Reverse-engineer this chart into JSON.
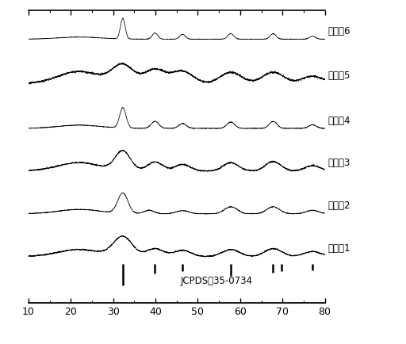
{
  "title": "",
  "xlabel": "",
  "ylabel": "",
  "xlim": [
    10,
    80
  ],
  "xticklabels": [
    "10",
    "20",
    "30",
    "40",
    "50",
    "60",
    "70",
    "80"
  ],
  "xticks": [
    10,
    20,
    30,
    40,
    50,
    60,
    70,
    80
  ],
  "background_color": "#ffffff",
  "labels": [
    "实施例6",
    "实施例5",
    "实施例4",
    "实施例3",
    "实施例2",
    "实施例1"
  ],
  "jcpds_label": "JCPDS：35-0734",
  "jcpds_peaks": [
    32.3,
    39.9,
    46.4,
    57.8,
    67.8,
    69.8,
    77.1
  ],
  "jcpds_peak_heights_rel": [
    1.0,
    0.45,
    0.35,
    0.55,
    0.4,
    0.35,
    0.3
  ],
  "offsets": [
    5.8,
    4.65,
    3.5,
    2.4,
    1.3,
    0.2
  ],
  "noise_scale": 0.018,
  "line_color": "#000000",
  "label_fontsize": 8.5,
  "tick_fontsize": 9,
  "patterns": [
    {
      "name": "实施例1",
      "broad_hump": {
        "mu": 22,
        "sigma": 5,
        "amp": 0.25
      },
      "peaks": [
        {
          "mu": 32.3,
          "sigma": 2.2,
          "amp": 0.7
        },
        {
          "mu": 39.9,
          "sigma": 2.0,
          "amp": 0.28
        },
        {
          "mu": 46.4,
          "sigma": 2.0,
          "amp": 0.22
        },
        {
          "mu": 57.8,
          "sigma": 2.0,
          "amp": 0.25
        },
        {
          "mu": 67.8,
          "sigma": 2.0,
          "amp": 0.28
        },
        {
          "mu": 77.1,
          "sigma": 2.0,
          "amp": 0.18
        }
      ]
    },
    {
      "name": "实施例2",
      "broad_hump": {
        "mu": 22,
        "sigma": 5,
        "amp": 0.28
      },
      "peaks": [
        {
          "mu": 32.3,
          "sigma": 1.2,
          "amp": 1.3
        },
        {
          "mu": 38.5,
          "sigma": 1.2,
          "amp": 0.22
        },
        {
          "mu": 46.4,
          "sigma": 1.5,
          "amp": 0.2
        },
        {
          "mu": 57.8,
          "sigma": 1.5,
          "amp": 0.45
        },
        {
          "mu": 67.8,
          "sigma": 1.5,
          "amp": 0.45
        },
        {
          "mu": 77.1,
          "sigma": 1.5,
          "amp": 0.22
        }
      ]
    },
    {
      "name": "实施例3",
      "broad_hump": {
        "mu": 22,
        "sigma": 5,
        "amp": 0.28
      },
      "peaks": [
        {
          "mu": 32.3,
          "sigma": 1.8,
          "amp": 0.65
        },
        {
          "mu": 39.9,
          "sigma": 1.8,
          "amp": 0.3
        },
        {
          "mu": 46.4,
          "sigma": 1.8,
          "amp": 0.22
        },
        {
          "mu": 57.8,
          "sigma": 1.8,
          "amp": 0.28
        },
        {
          "mu": 67.8,
          "sigma": 1.8,
          "amp": 0.32
        },
        {
          "mu": 77.1,
          "sigma": 1.8,
          "amp": 0.18
        }
      ]
    },
    {
      "name": "实施例4",
      "broad_hump": {
        "mu": 22,
        "sigma": 5,
        "amp": 0.25
      },
      "peaks": [
        {
          "mu": 32.3,
          "sigma": 0.75,
          "amp": 1.6
        },
        {
          "mu": 39.9,
          "sigma": 0.9,
          "amp": 0.55
        },
        {
          "mu": 46.4,
          "sigma": 0.9,
          "amp": 0.38
        },
        {
          "mu": 57.8,
          "sigma": 0.9,
          "amp": 0.5
        },
        {
          "mu": 67.8,
          "sigma": 0.9,
          "amp": 0.55
        },
        {
          "mu": 77.1,
          "sigma": 0.9,
          "amp": 0.28
        }
      ]
    },
    {
      "name": "实施例5",
      "broad_hump": {
        "mu": 22,
        "sigma": 5,
        "amp": 0.3
      },
      "peaks": [
        {
          "mu": 32.3,
          "sigma": 2.5,
          "amp": 0.45
        },
        {
          "mu": 39.9,
          "sigma": 2.5,
          "amp": 0.35
        },
        {
          "mu": 46.4,
          "sigma": 2.5,
          "amp": 0.3
        },
        {
          "mu": 57.8,
          "sigma": 2.5,
          "amp": 0.28
        },
        {
          "mu": 67.8,
          "sigma": 2.5,
          "amp": 0.28
        },
        {
          "mu": 77.1,
          "sigma": 2.5,
          "amp": 0.18
        }
      ]
    },
    {
      "name": "实施例6",
      "broad_hump": {
        "mu": 22,
        "sigma": 5,
        "amp": 0.22
      },
      "peaks": [
        {
          "mu": 32.3,
          "sigma": 0.55,
          "amp": 2.2
        },
        {
          "mu": 39.9,
          "sigma": 0.65,
          "amp": 0.65
        },
        {
          "mu": 46.4,
          "sigma": 0.65,
          "amp": 0.52
        },
        {
          "mu": 57.8,
          "sigma": 0.7,
          "amp": 0.58
        },
        {
          "mu": 67.8,
          "sigma": 0.7,
          "amp": 0.58
        },
        {
          "mu": 77.1,
          "sigma": 0.7,
          "amp": 0.32
        }
      ]
    }
  ]
}
